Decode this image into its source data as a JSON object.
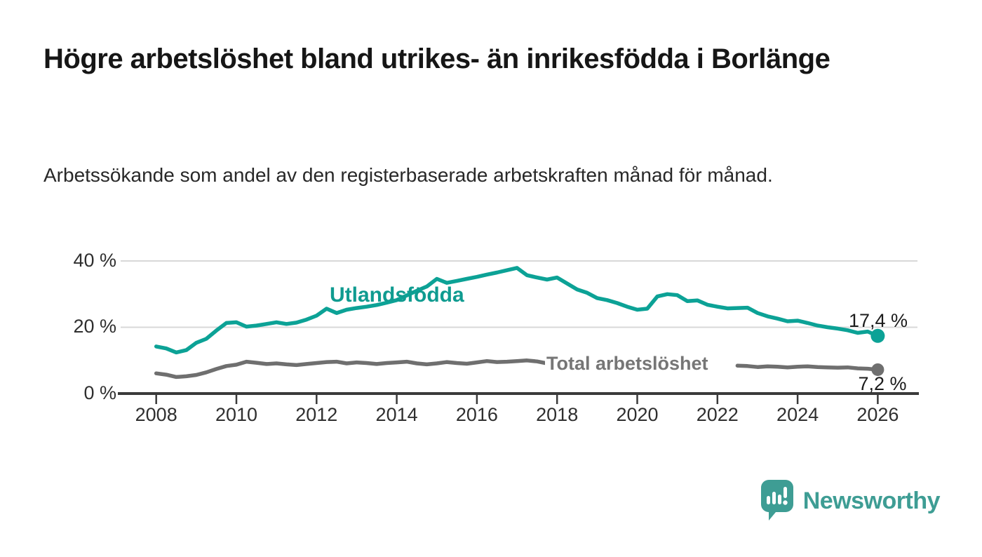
{
  "header": {
    "title": "Högre arbetslöshet bland utrikes- än inrikesfödda i Borlänge",
    "subtitle": "Arbetssökande som andel av den registerbaserade arbetskraften månad för månad."
  },
  "footer": {
    "brand": "Newsworthy",
    "logo_icon": "speech-bubble-bar-chart-icon",
    "brand_color": "#3e9d94"
  },
  "chart_data": {
    "type": "line",
    "title": "",
    "xlabel": "",
    "ylabel": "",
    "grid": "horizontal",
    "legend_position": "inline-labels",
    "xlim": [
      2007.1,
      2027.0
    ],
    "ylim": [
      0,
      42
    ],
    "x_ticks": [
      2008,
      2010,
      2012,
      2014,
      2016,
      2018,
      2020,
      2022,
      2024,
      2026
    ],
    "y_ticks": [
      {
        "value": 0,
        "label": "0 %"
      },
      {
        "value": 20,
        "label": "20 %"
      },
      {
        "value": 40,
        "label": "40 %"
      }
    ],
    "colors": {
      "series1": "#0ca296",
      "series2": "#6f6f6f",
      "gridline": "#d8d8d8",
      "axis": "#3a3a3a",
      "text": "#2f2f2f"
    },
    "series": [
      {
        "name": "Utlandsfödda",
        "color": "#0ca296",
        "x_start": 2008.0,
        "x_step_years": 0.25,
        "end_value": 17.4,
        "end_label": "17,4 %",
        "values": [
          14.2,
          13.6,
          12.4,
          13.1,
          15.3,
          16.5,
          19.0,
          21.3,
          21.5,
          20.2,
          20.5,
          21.0,
          21.5,
          21.0,
          21.4,
          22.3,
          23.5,
          25.6,
          24.3,
          25.3,
          25.8,
          26.2,
          26.7,
          27.4,
          28.2,
          29.6,
          31.0,
          32.3,
          34.6,
          33.4,
          34.0,
          34.6,
          35.2,
          35.9,
          36.5,
          37.2,
          37.9,
          35.7,
          35.0,
          34.4,
          35.0,
          33.2,
          31.4,
          30.4,
          28.8,
          28.2,
          27.3,
          26.2,
          25.3,
          25.6,
          29.3,
          30.0,
          29.7,
          27.9,
          28.1,
          26.8,
          26.2,
          25.7,
          25.8,
          25.9,
          24.3,
          23.3,
          22.6,
          21.8,
          22.0,
          21.3,
          20.5,
          20.0,
          19.6,
          19.1,
          18.3,
          18.7,
          17.4
        ]
      },
      {
        "name": "Total arbetslöshet",
        "color": "#6f6f6f",
        "x_start": 2008.0,
        "x_step_years": 0.25,
        "end_value": 7.2,
        "end_label": "7,2 %",
        "note_hidden_segment": "line hidden behind inline label between 2018.0 and 2022.25",
        "values": [
          6.1,
          5.7,
          5.0,
          5.2,
          5.6,
          6.4,
          7.4,
          8.3,
          8.7,
          9.6,
          9.3,
          8.9,
          9.1,
          8.8,
          8.6,
          8.9,
          9.2,
          9.5,
          9.6,
          9.1,
          9.4,
          9.2,
          8.9,
          9.2,
          9.4,
          9.6,
          9.1,
          8.8,
          9.1,
          9.5,
          9.2,
          9.0,
          9.4,
          9.8,
          9.5,
          9.6,
          9.8,
          10.0,
          9.7,
          9.1,
          null,
          null,
          null,
          null,
          null,
          null,
          null,
          null,
          null,
          null,
          null,
          null,
          null,
          null,
          null,
          null,
          null,
          null,
          8.4,
          8.3,
          8.0,
          8.2,
          8.1,
          7.9,
          8.1,
          8.2,
          8.0,
          7.9,
          7.8,
          7.9,
          7.6,
          7.5,
          7.2
        ]
      }
    ]
  }
}
